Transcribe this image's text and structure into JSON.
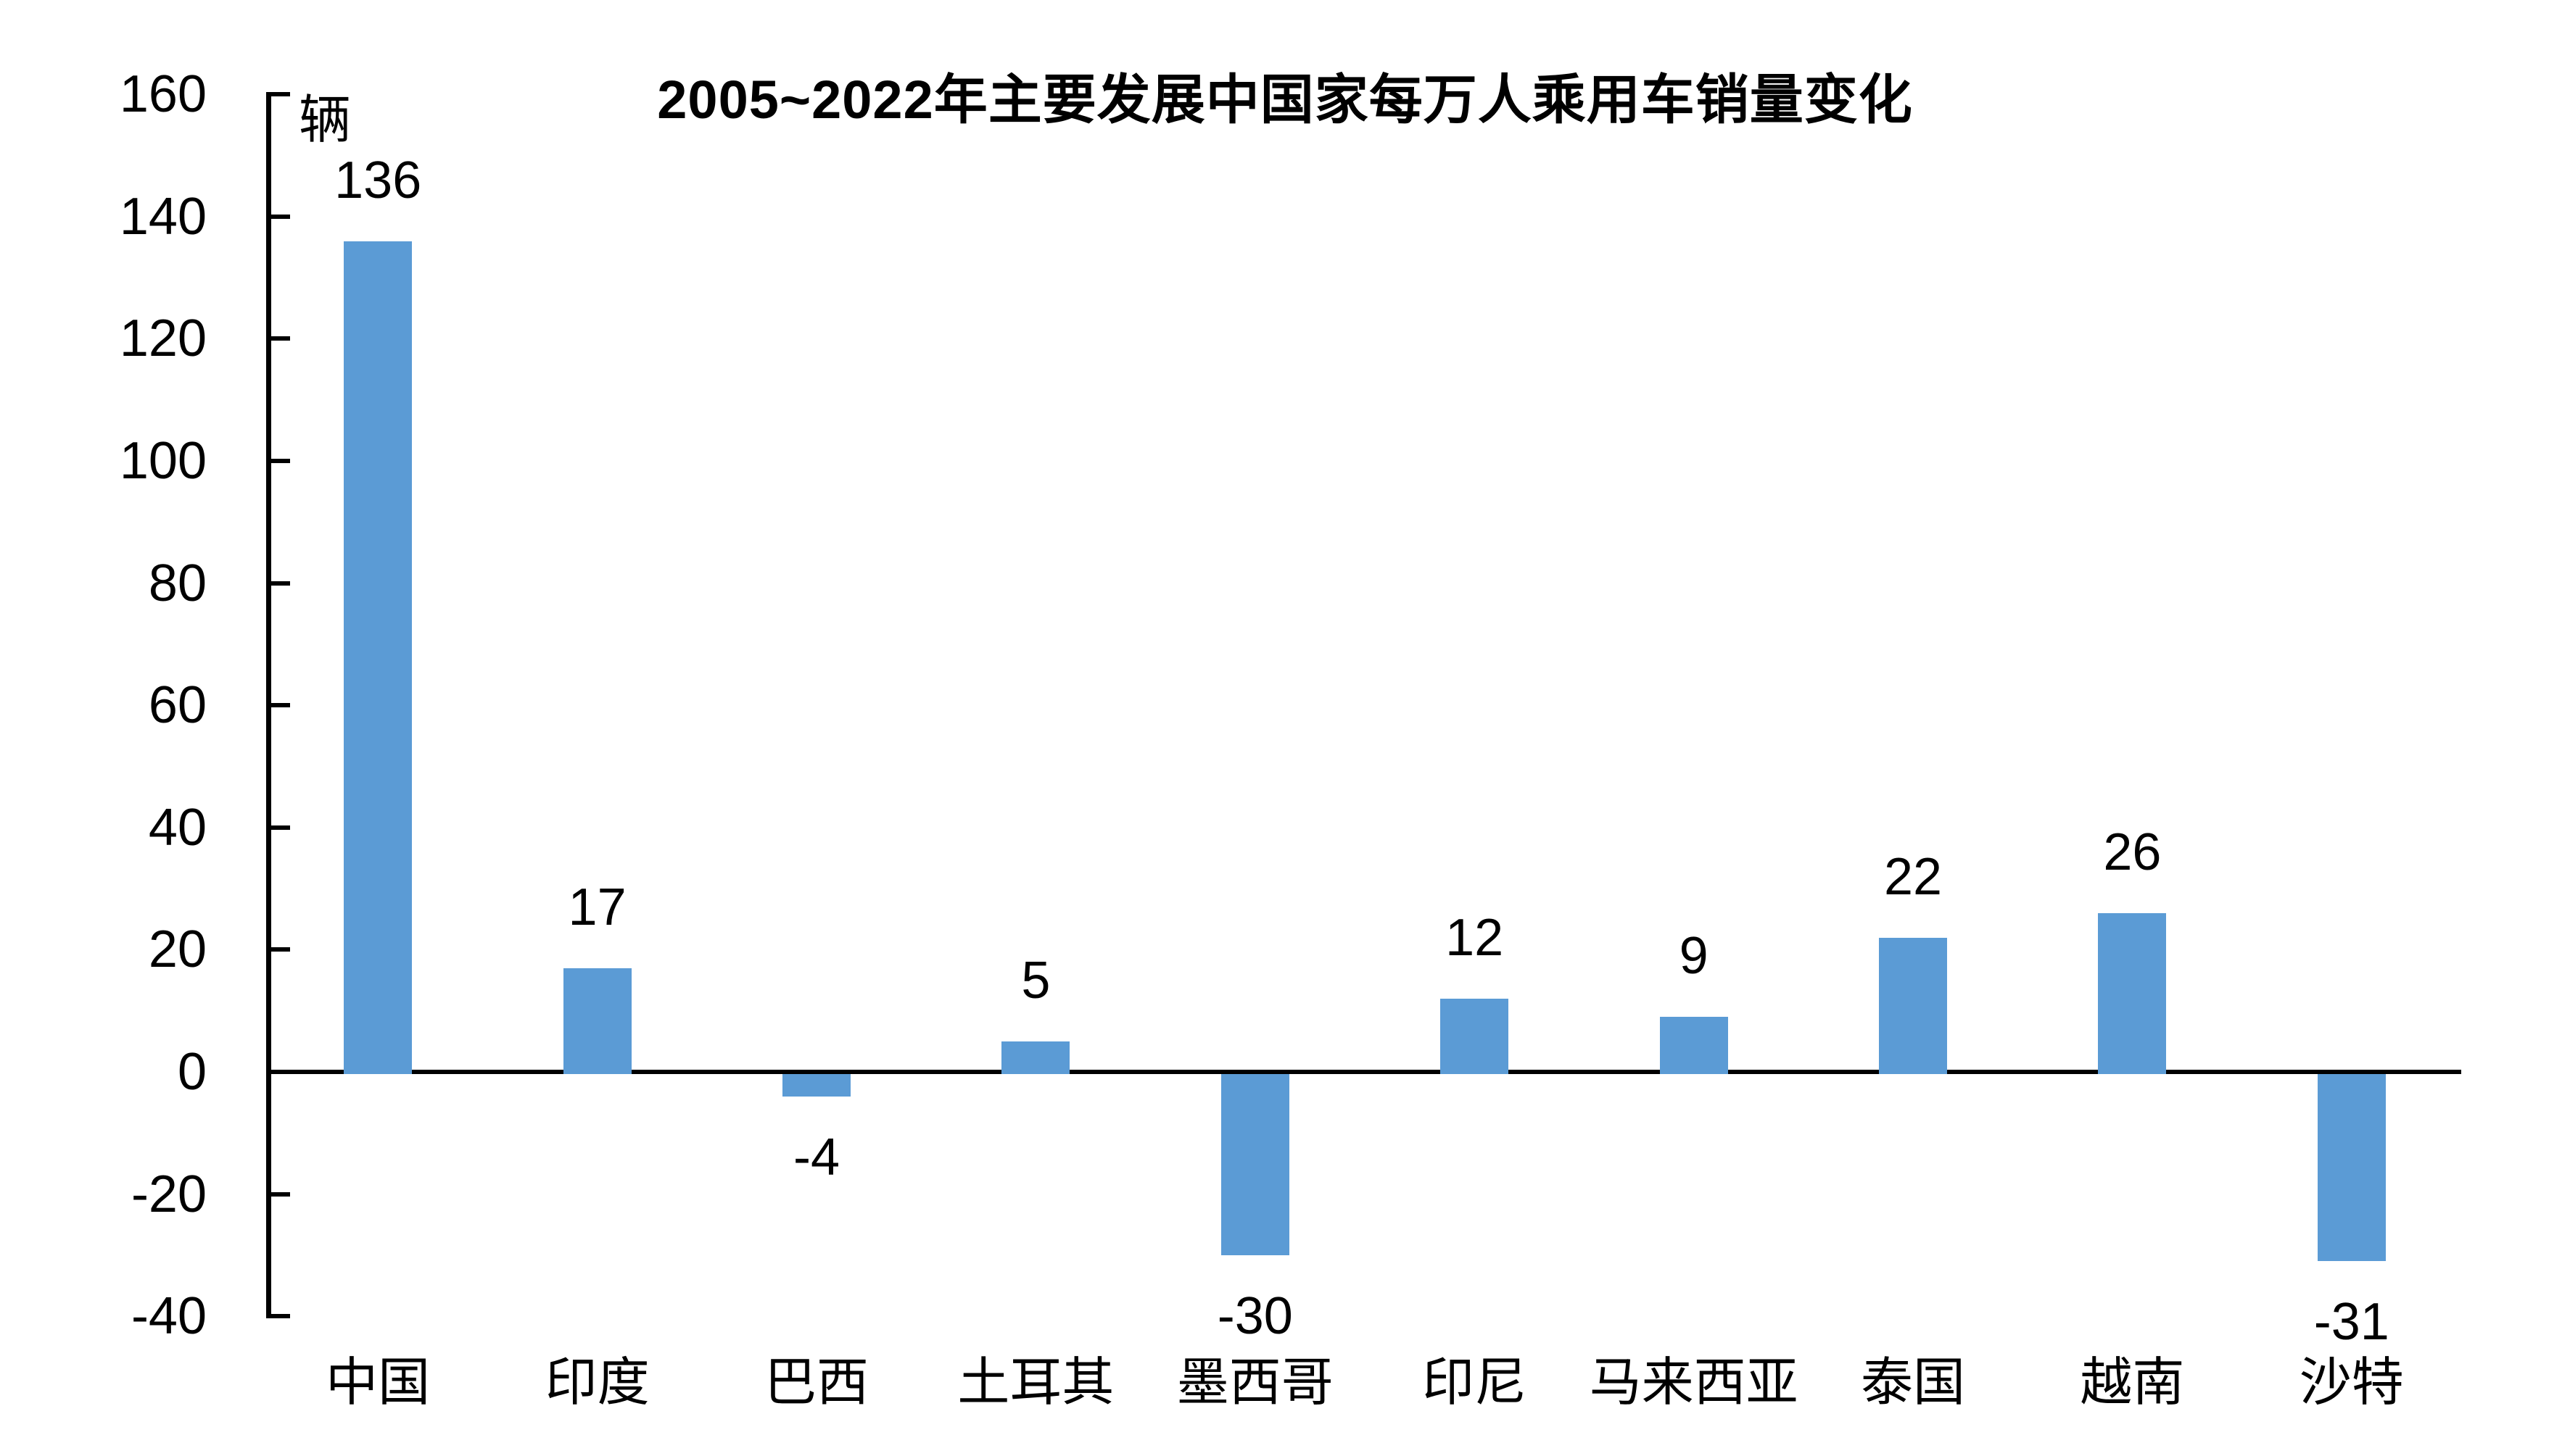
{
  "chart": {
    "title": "2005~2022年主要发展中国家每万人乘用车销量变化",
    "unit_label": "辆",
    "bar_color": "#5B9BD5",
    "axis_color": "#000000",
    "background_color": "#FFFFFF"
  },
  "chart_data": {
    "type": "bar",
    "title": "2005~2022年主要发展中国家每万人乘用车销量变化",
    "unit": "辆",
    "categories": [
      "中国",
      "印度",
      "巴西",
      "土耳其",
      "墨西哥",
      "印尼",
      "马来西亚",
      "泰国",
      "越南",
      "沙特"
    ],
    "values": [
      136,
      17,
      -4,
      5,
      -30,
      12,
      9,
      22,
      26,
      -31
    ],
    "data_labels": [
      "136",
      "17",
      "-4",
      "5",
      "-30",
      "12",
      "9",
      "22",
      "26",
      "-31"
    ],
    "xlabel": "",
    "ylabel": "辆",
    "ylim": [
      -40,
      160
    ],
    "yticks": [
      160,
      140,
      120,
      100,
      80,
      60,
      40,
      20,
      0,
      -20,
      -40
    ],
    "grid": false,
    "legend": false,
    "bar_color": "#5B9BD5"
  }
}
